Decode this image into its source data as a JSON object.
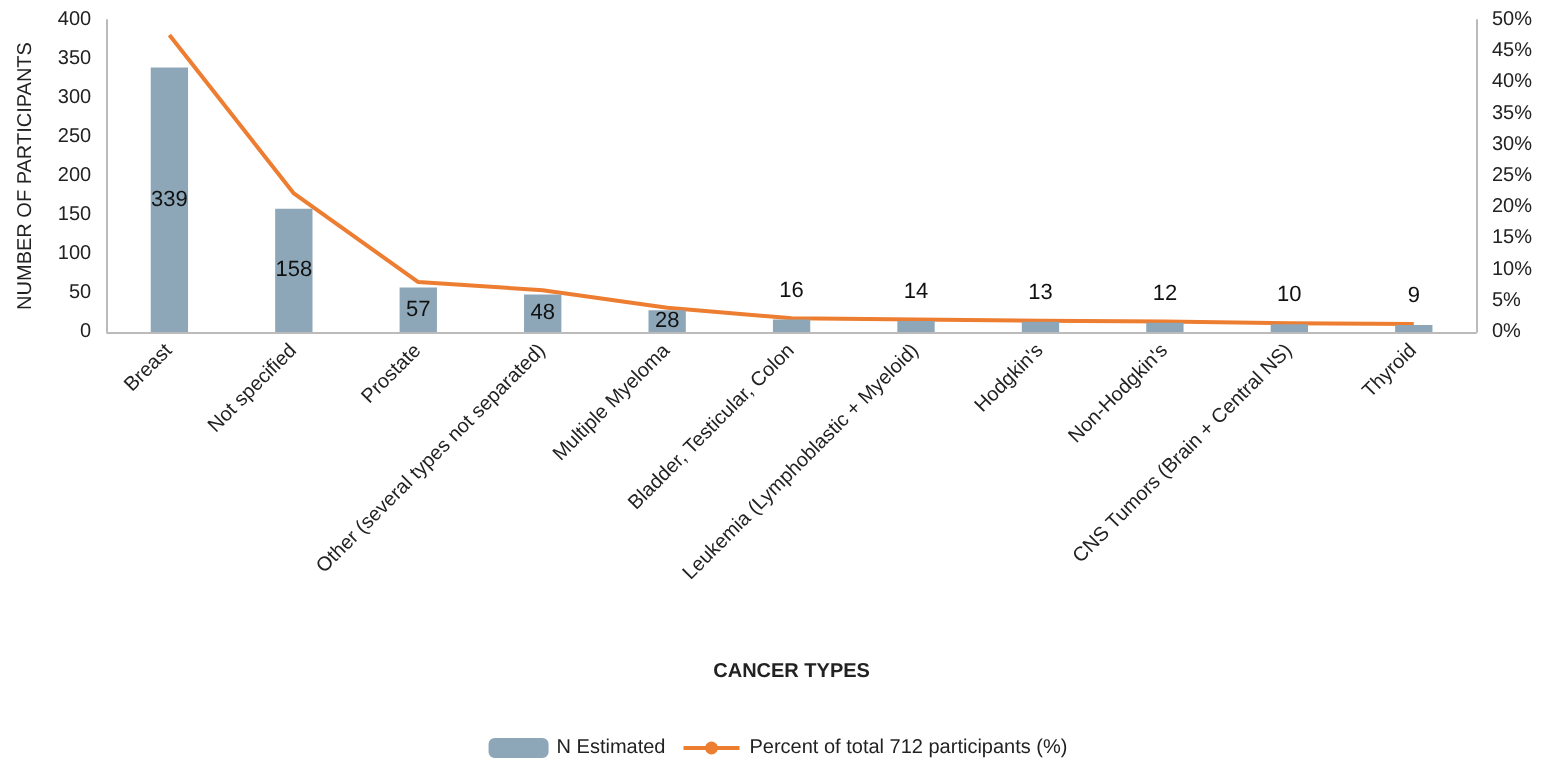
{
  "chart_data": {
    "type": "bar",
    "xlabel": "CANCER TYPES",
    "ylabel": "NUMBER OF PARTICIPANTS",
    "categories": [
      "Breast",
      "Not specified",
      "Prostate",
      "Other (several types not separated)",
      "Multiple Myeloma",
      "Bladder, Testicular, Colon",
      "Leukemia (Lymphoblastic + Myeloid)",
      "Hodgkin's",
      "Non-Hodgkin's",
      "CNS Tumors (Brain + Central NS)",
      "Thyroid"
    ],
    "series": [
      {
        "name": "N Estimated",
        "color": "#8da7b9",
        "values": [
          339,
          158,
          57,
          48,
          28,
          16,
          14,
          13,
          12,
          10,
          9
        ],
        "value_labels": [
          "339",
          "158",
          "57",
          "48",
          "28",
          "16",
          "14",
          "13",
          "12",
          "10",
          "9"
        ]
      },
      {
        "name": "Percent of total 712 participants (%)",
        "type": "line",
        "axis": "y2",
        "color": "#ed7d31",
        "values": [
          47.6,
          22.2,
          8.0,
          6.7,
          3.9,
          2.2,
          2.0,
          1.8,
          1.7,
          1.4,
          1.3
        ]
      }
    ],
    "ylim": [
      0,
      400
    ],
    "yticks": [
      0,
      50,
      100,
      150,
      200,
      250,
      300,
      350,
      400
    ],
    "y2lim": [
      0,
      50
    ],
    "y2ticks": [
      {
        "value": 0,
        "label": "0%"
      },
      {
        "value": 5,
        "label": "5%"
      },
      {
        "value": 10,
        "label": "10%"
      },
      {
        "value": 15,
        "label": "15%"
      },
      {
        "value": 20,
        "label": "20%"
      },
      {
        "value": 25,
        "label": "25%"
      },
      {
        "value": 30,
        "label": "30%"
      },
      {
        "value": 35,
        "label": "35%"
      },
      {
        "value": 40,
        "label": "40%"
      },
      {
        "value": 45,
        "label": "45%"
      },
      {
        "value": 50,
        "label": "50%"
      }
    ],
    "grid": false,
    "legend": "bottom",
    "marker": "none"
  }
}
